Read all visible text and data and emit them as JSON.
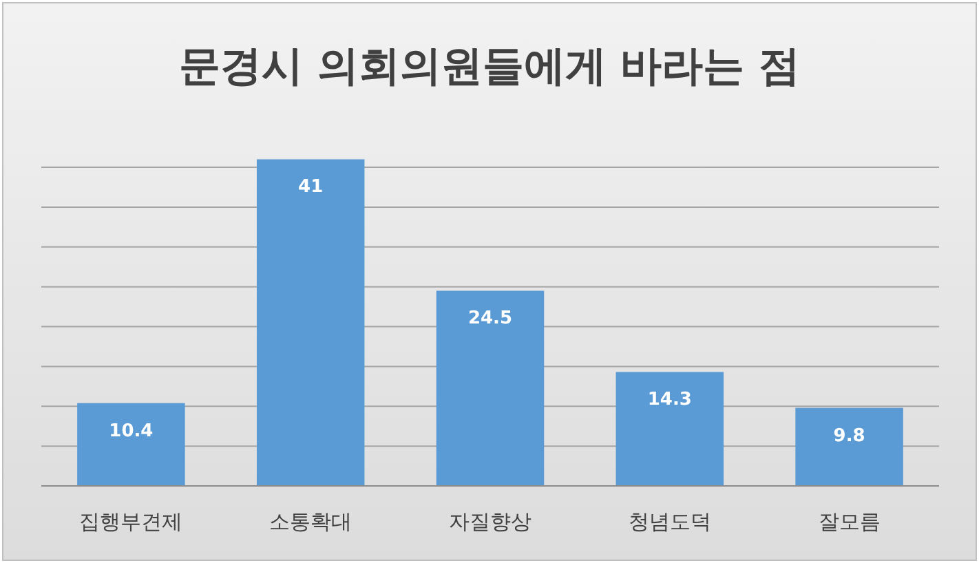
{
  "chart_data": {
    "type": "bar",
    "title": "문경시 의회의원들에게 바라는 점",
    "categories": [
      "집행부견제",
      "소통확대",
      "자질향상",
      "청념도덕",
      "잘모름"
    ],
    "values": [
      10.4,
      41,
      24.5,
      14.3,
      9.8
    ],
    "color": "#5b9bd5",
    "yticks": [
      {
        "value": 0,
        "label": null
      },
      {
        "value": 5,
        "label": null
      },
      {
        "value": 10,
        "label": null
      },
      {
        "value": 15,
        "label": null
      },
      {
        "value": 20,
        "label": null
      },
      {
        "value": 25,
        "label": null
      },
      {
        "value": 30,
        "label": null
      },
      {
        "value": 35,
        "label": null
      },
      {
        "value": 40,
        "label": null
      }
    ],
    "tick_labels": "x",
    "grid": "y",
    "data_labels": true
  }
}
